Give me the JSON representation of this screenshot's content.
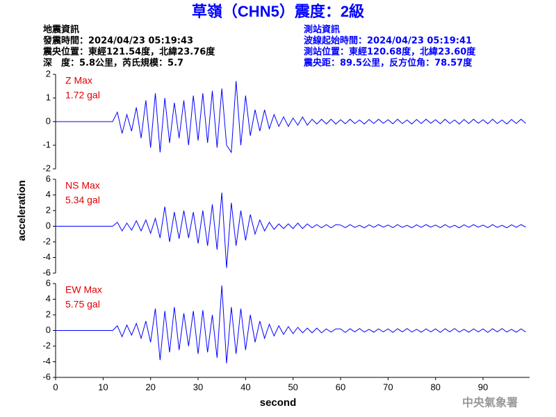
{
  "header": {
    "title": "草嶺（CHN5）震度：2級",
    "left": [
      "地震資訊",
      "發震時間：2024/04/23 05:19:43",
      "震央位置：東經121.54度，北緯23.76度",
      "深　度：5.8公里，芮氏規模：5.7"
    ],
    "right": [
      "測站資訊",
      "波線起始時間：2024/04/23 05:19:41",
      "測站位置：東經120.68度，北緯23.60度",
      "震央距：89.5公里，反方位角：78.57度"
    ]
  },
  "ylabel": "acceleration",
  "xlabel": "second",
  "footer": "中央氣象署",
  "chart_data": [
    {
      "type": "line",
      "annotations": [
        "Z Max",
        "1.72 gal"
      ],
      "xlim": [
        0,
        99.8
      ],
      "ylim": [
        -2,
        2
      ],
      "yticks": [
        -2,
        -1,
        0,
        1,
        2
      ],
      "x": [
        0,
        12,
        13,
        14,
        15,
        16,
        17,
        18,
        19,
        20,
        21,
        22,
        23,
        24,
        25,
        26,
        27,
        28,
        29,
        30,
        31,
        32,
        33,
        34,
        35,
        36,
        37,
        38,
        39,
        40,
        41,
        42,
        43,
        44,
        45,
        46,
        47,
        48,
        49,
        50,
        51,
        52,
        53,
        54,
        55,
        56,
        57,
        58,
        59,
        60,
        61,
        62,
        63,
        64,
        65,
        66,
        67,
        68,
        69,
        70,
        71,
        72,
        73,
        74,
        75,
        76,
        77,
        78,
        79,
        80,
        81,
        82,
        83,
        84,
        85,
        86,
        87,
        88,
        89,
        90,
        91,
        92,
        93,
        94,
        95,
        96,
        97,
        98,
        99
      ],
      "series": [
        {
          "color": "#0000ff",
          "values": [
            0,
            0,
            0.4,
            -0.5,
            0.3,
            -0.4,
            0.6,
            -0.7,
            0.9,
            -1.1,
            1.2,
            -1.3,
            1.0,
            -0.9,
            0.8,
            -0.7,
            0.9,
            -1.0,
            1.1,
            -0.8,
            1.2,
            -0.9,
            1.3,
            -1.1,
            1.4,
            -1.0,
            -1.3,
            1.72,
            -1.0,
            1.1,
            -0.6,
            0.5,
            -0.4,
            0.5,
            -0.3,
            0.3,
            -0.2,
            0.2,
            -0.2,
            0.15,
            -0.15,
            0.2,
            -0.15,
            0.1,
            -0.1,
            0.1,
            -0.1,
            0.1,
            -0.1,
            0.08,
            -0.09,
            0.1,
            -0.08,
            0.07,
            -0.1,
            0.09,
            -0.08,
            0.1,
            -0.07,
            0.08,
            -0.09,
            0.1,
            -0.08,
            0.07,
            -0.1,
            0.09,
            -0.08,
            0.1,
            -0.07,
            0.08,
            -0.09,
            0.1,
            -0.08,
            0.07,
            -0.1,
            0.09,
            -0.08,
            0.1,
            -0.07,
            0.08,
            -0.09,
            0.1,
            -0.08,
            0.07,
            -0.1,
            0.09,
            -0.08,
            0.1,
            -0.07
          ]
        }
      ]
    },
    {
      "type": "line",
      "annotations": [
        "NS Max",
        "5.34 gal"
      ],
      "xlim": [
        0,
        99.8
      ],
      "ylim": [
        -6,
        6
      ],
      "yticks": [
        -6,
        -4,
        -2,
        0,
        2,
        4,
        6
      ],
      "x": [
        0,
        12,
        13,
        14,
        15,
        16,
        17,
        18,
        19,
        20,
        21,
        22,
        23,
        24,
        25,
        26,
        27,
        28,
        29,
        30,
        31,
        32,
        33,
        34,
        35,
        36,
        37,
        38,
        39,
        40,
        41,
        42,
        43,
        44,
        45,
        46,
        47,
        48,
        49,
        50,
        51,
        52,
        53,
        54,
        55,
        56,
        57,
        58,
        59,
        60,
        61,
        62,
        63,
        64,
        65,
        66,
        67,
        68,
        69,
        70,
        71,
        72,
        73,
        74,
        75,
        76,
        77,
        78,
        79,
        80,
        81,
        82,
        83,
        84,
        85,
        86,
        87,
        88,
        89,
        90,
        91,
        92,
        93,
        94,
        95,
        96,
        97,
        98,
        99
      ],
      "series": [
        {
          "color": "#0000ff",
          "values": [
            0,
            0,
            0.5,
            -0.6,
            0.4,
            -0.5,
            0.7,
            -0.6,
            0.8,
            -0.9,
            1.0,
            -1.5,
            2.5,
            -2.0,
            1.8,
            -1.6,
            2.0,
            -1.5,
            1.8,
            -2.2,
            2.0,
            -2.5,
            2.8,
            -3.0,
            4.3,
            -5.34,
            3.0,
            -2.5,
            2.0,
            -1.8,
            1.5,
            -1.0,
            0.8,
            -0.6,
            0.5,
            -0.4,
            0.3,
            -0.3,
            0.3,
            -0.3,
            0.4,
            -0.3,
            0.3,
            -0.2,
            0.2,
            -0.2,
            0.2,
            -0.2,
            0.2,
            0.15,
            -0.18,
            0.2,
            -0.15,
            0.12,
            -0.2,
            0.18,
            -0.14,
            0.2,
            -0.12,
            0.15,
            -0.18,
            0.2,
            -0.15,
            0.12,
            -0.2,
            0.18,
            -0.14,
            0.2,
            -0.12,
            0.15,
            -0.18,
            0.2,
            -0.15,
            0.12,
            -0.2,
            0.18,
            -0.14,
            0.2,
            -0.12,
            0.15,
            -0.18,
            0.2,
            -0.15,
            0.12,
            -0.2,
            0.18,
            -0.14,
            0.2,
            -0.12
          ]
        }
      ]
    },
    {
      "type": "line",
      "annotations": [
        "EW Max",
        "5.75 gal"
      ],
      "xlim": [
        0,
        99.8
      ],
      "ylim": [
        -6,
        6
      ],
      "yticks": [
        -6,
        -4,
        -2,
        0,
        2,
        4,
        6
      ],
      "xticks": [
        0,
        10,
        20,
        30,
        40,
        50,
        60,
        70,
        80,
        90
      ],
      "x": [
        0,
        12,
        13,
        14,
        15,
        16,
        17,
        18,
        19,
        20,
        21,
        22,
        23,
        24,
        25,
        26,
        27,
        28,
        29,
        30,
        31,
        32,
        33,
        34,
        35,
        36,
        37,
        38,
        39,
        40,
        41,
        42,
        43,
        44,
        45,
        46,
        47,
        48,
        49,
        50,
        51,
        52,
        53,
        54,
        55,
        56,
        57,
        58,
        59,
        60,
        61,
        62,
        63,
        64,
        65,
        66,
        67,
        68,
        69,
        70,
        71,
        72,
        73,
        74,
        75,
        76,
        77,
        78,
        79,
        80,
        81,
        82,
        83,
        84,
        85,
        86,
        87,
        88,
        89,
        90,
        91,
        92,
        93,
        94,
        95,
        96,
        97,
        98,
        99
      ],
      "series": [
        {
          "color": "#0000ff",
          "values": [
            0,
            0,
            0.6,
            -0.8,
            0.7,
            -0.6,
            0.9,
            -1.0,
            1.2,
            -1.5,
            2.8,
            -3.8,
            2.5,
            -2.8,
            3.0,
            -2.5,
            2.2,
            -2.0,
            2.5,
            -3.0,
            2.6,
            -2.8,
            2.0,
            -3.5,
            5.75,
            -4.2,
            3.0,
            -3.0,
            2.8,
            -2.5,
            2.0,
            -1.5,
            1.2,
            -1.0,
            0.8,
            -0.7,
            0.6,
            -0.5,
            0.5,
            -0.4,
            0.4,
            -0.3,
            0.3,
            -0.3,
            0.3,
            -0.3,
            0.2,
            -0.2,
            0.2,
            0.2,
            -0.25,
            0.22,
            -0.18,
            0.25,
            -0.2,
            0.15,
            -0.22,
            0.2,
            -0.18,
            0.2,
            -0.25,
            0.22,
            -0.18,
            0.25,
            -0.2,
            0.15,
            -0.22,
            0.2,
            -0.18,
            0.2,
            -0.25,
            0.22,
            -0.18,
            0.25,
            -0.2,
            0.15,
            -0.22,
            0.2,
            -0.18,
            0.2,
            -0.25,
            0.22,
            -0.18,
            0.25,
            -0.2,
            0.15,
            -0.22,
            0.2,
            -0.18
          ]
        }
      ]
    }
  ]
}
